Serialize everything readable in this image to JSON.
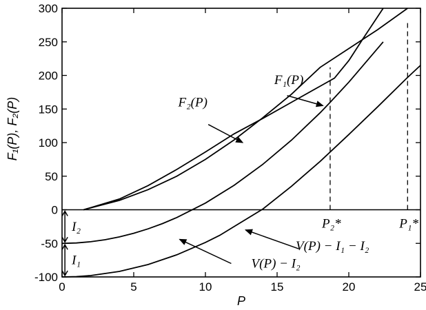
{
  "chart_data": {
    "type": "line",
    "xlabel": "P",
    "ylabel": "F₁(P), F₂(P)",
    "xlim": [
      0,
      25
    ],
    "ylim": [
      -100,
      300
    ],
    "x_ticks": [
      0,
      5,
      10,
      15,
      20,
      25
    ],
    "y_ticks": [
      -100,
      -50,
      0,
      50,
      100,
      150,
      200,
      250,
      300
    ],
    "x_tick_labels": [
      "0",
      "5",
      "10",
      "15",
      "20",
      "25"
    ],
    "y_tick_labels": [
      "-100",
      "-50",
      "0",
      "50",
      "100",
      "150",
      "200",
      "250",
      "300"
    ],
    "zero_line": 0,
    "series": [
      {
        "name": "F₁(P)",
        "x": [
          1.5,
          4,
          6,
          8,
          10,
          12,
          14,
          16,
          18,
          20,
          22,
          24.1
        ],
        "y": [
          0,
          14,
          30,
          50,
          75,
          104,
          137,
          172,
          212,
          240,
          268,
          300
        ]
      },
      {
        "name": "F₂(P)",
        "x": [
          1.5,
          4,
          6,
          8,
          10,
          12,
          14,
          16,
          18,
          19,
          20,
          21,
          22.4
        ],
        "y": [
          0,
          16,
          36,
          60,
          86,
          113,
          136,
          160,
          184,
          196,
          222,
          255,
          300
        ]
      },
      {
        "name": "V(P) − I₂",
        "x": [
          0,
          1,
          2,
          3,
          4,
          5,
          6,
          7,
          8,
          10,
          12,
          14,
          16,
          18,
          18.7,
          20,
          22.4
        ],
        "y": [
          -50,
          -49.4,
          -47.6,
          -44.6,
          -40.4,
          -35.0,
          -28.4,
          -20.6,
          -11.6,
          10,
          36.4,
          67.6,
          103.6,
          144.4,
          160,
          190,
          250
        ]
      },
      {
        "name": "V(P) − I₁ − I₂",
        "x": [
          0,
          1,
          2,
          4,
          6,
          8,
          10,
          11,
          12,
          14,
          16,
          18,
          20,
          22,
          24,
          24.1,
          25
        ],
        "y": [
          -100,
          -99.5,
          -97.9,
          -91.8,
          -81.5,
          -67.1,
          -48.6,
          -38.0,
          -25.0,
          1,
          35,
          72,
          112,
          153,
          195,
          197,
          215
        ]
      }
    ],
    "labels": {
      "F1": "F₁(P)",
      "F2": "F₂(P)",
      "V_I2": "V(P) − I₂",
      "V_I1_I2": "V(P) − I₁ − I₂",
      "I1": "I₁",
      "I2": "I₂",
      "P1star": "P₁*",
      "P2star": "P₂*"
    },
    "markers": {
      "P2star": 18.7,
      "P1star": 24.1,
      "I2_range": [
        -50,
        0
      ],
      "I1_range": [
        -100,
        -50
      ]
    },
    "grid": false
  }
}
